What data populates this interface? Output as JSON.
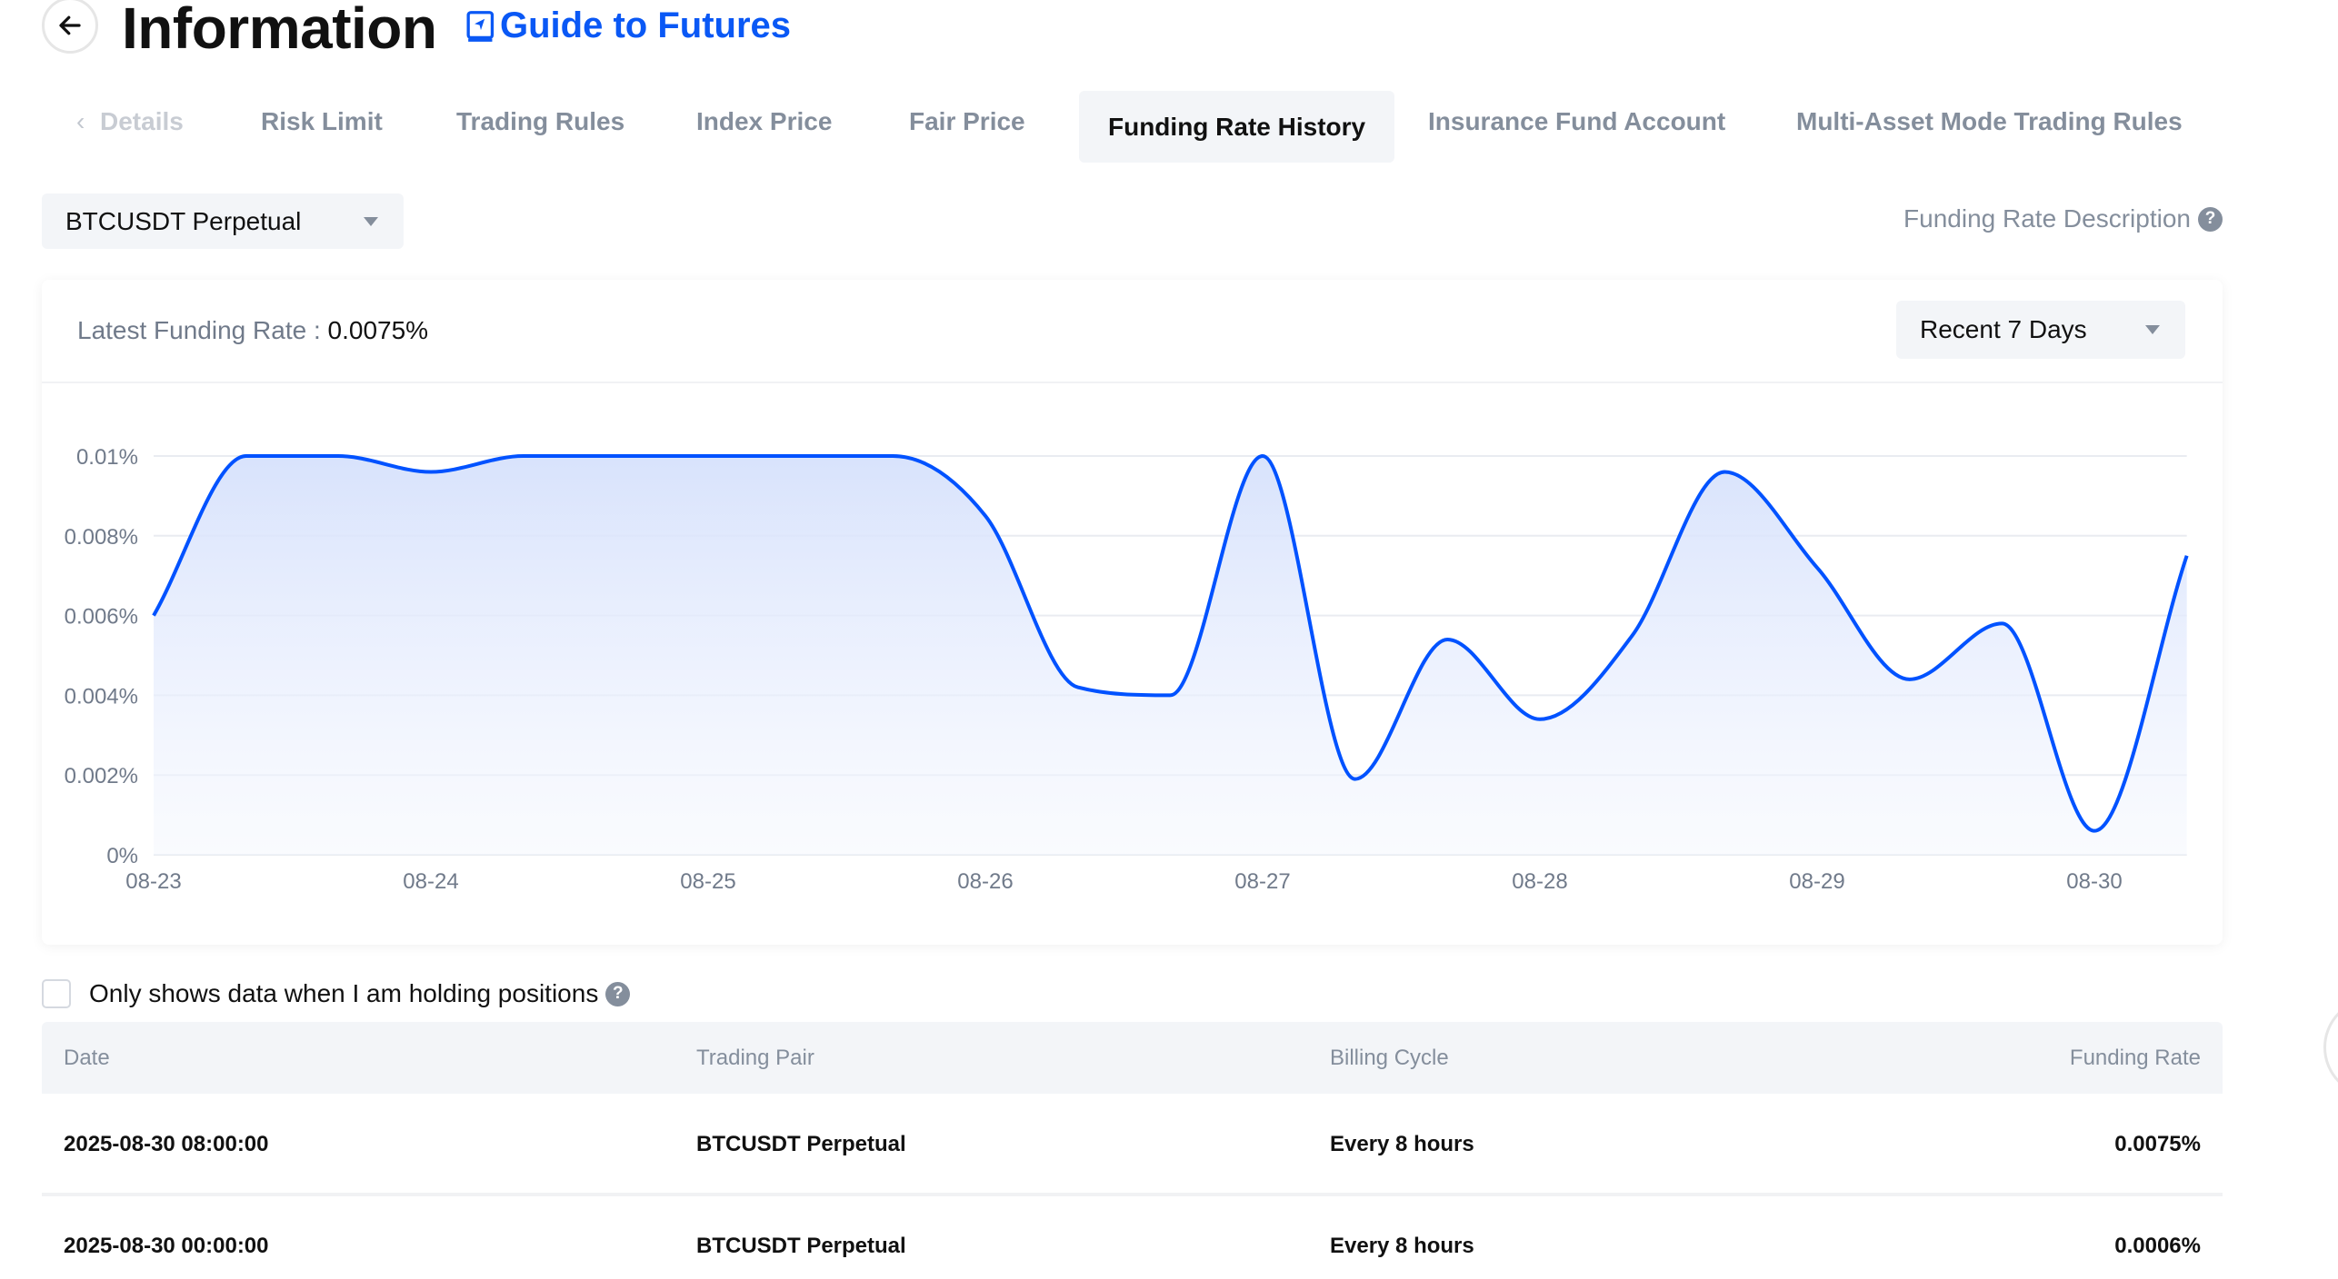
{
  "header": {
    "title": "Information",
    "guide_link": "Guide to Futures"
  },
  "tabs": [
    {
      "label": "Details",
      "active": false
    },
    {
      "label": "Risk Limit",
      "active": false
    },
    {
      "label": "Trading Rules",
      "active": false
    },
    {
      "label": "Index Price",
      "active": false
    },
    {
      "label": "Fair Price",
      "active": false
    },
    {
      "label": "Funding Rate History",
      "active": true
    },
    {
      "label": "Insurance Fund Account",
      "active": false
    },
    {
      "label": "Multi-Asset Mode Trading Rules",
      "active": false
    }
  ],
  "symbol_select": {
    "value": "BTCUSDT Perpetual"
  },
  "funding_rate_description": "Funding Rate Description",
  "card": {
    "latest_label": "Latest Funding Rate :",
    "latest_value": "0.0075%",
    "range_select": {
      "value": "Recent 7 Days"
    }
  },
  "colors": {
    "accent": "#0a58f5",
    "line": "#0052ff",
    "fill": "#dbe5fd"
  },
  "chart_data": {
    "type": "area",
    "interval": "8 hours",
    "x_ticks": [
      "08-23",
      "08-24",
      "08-25",
      "08-26",
      "08-27",
      "08-28",
      "08-29",
      "08-30"
    ],
    "y_ticks": [
      "0%",
      "0.002%",
      "0.004%",
      "0.006%",
      "0.008%",
      "0.01%"
    ],
    "ylim": [
      0,
      0.01
    ],
    "y_unit": "%",
    "grid": true,
    "values": [
      0.006,
      0.01,
      0.01,
      0.0096,
      0.01,
      0.01,
      0.01,
      0.01,
      0.01,
      0.0085,
      0.0042,
      0.004,
      0.01,
      0.0019,
      0.0054,
      0.0034,
      0.0055,
      0.0096,
      0.0072,
      0.0044,
      0.0058,
      0.0006,
      0.0075
    ]
  },
  "filter": {
    "label": "Only shows data when I am holding positions",
    "checked": false
  },
  "table": {
    "columns": [
      "Date",
      "Trading Pair",
      "Billing Cycle",
      "Funding Rate"
    ],
    "rows": [
      [
        "2025-08-30 08:00:00",
        "BTCUSDT Perpetual",
        "Every 8 hours",
        "0.0075%"
      ],
      [
        "2025-08-30 00:00:00",
        "BTCUSDT Perpetual",
        "Every 8 hours",
        "0.0006%"
      ]
    ]
  }
}
